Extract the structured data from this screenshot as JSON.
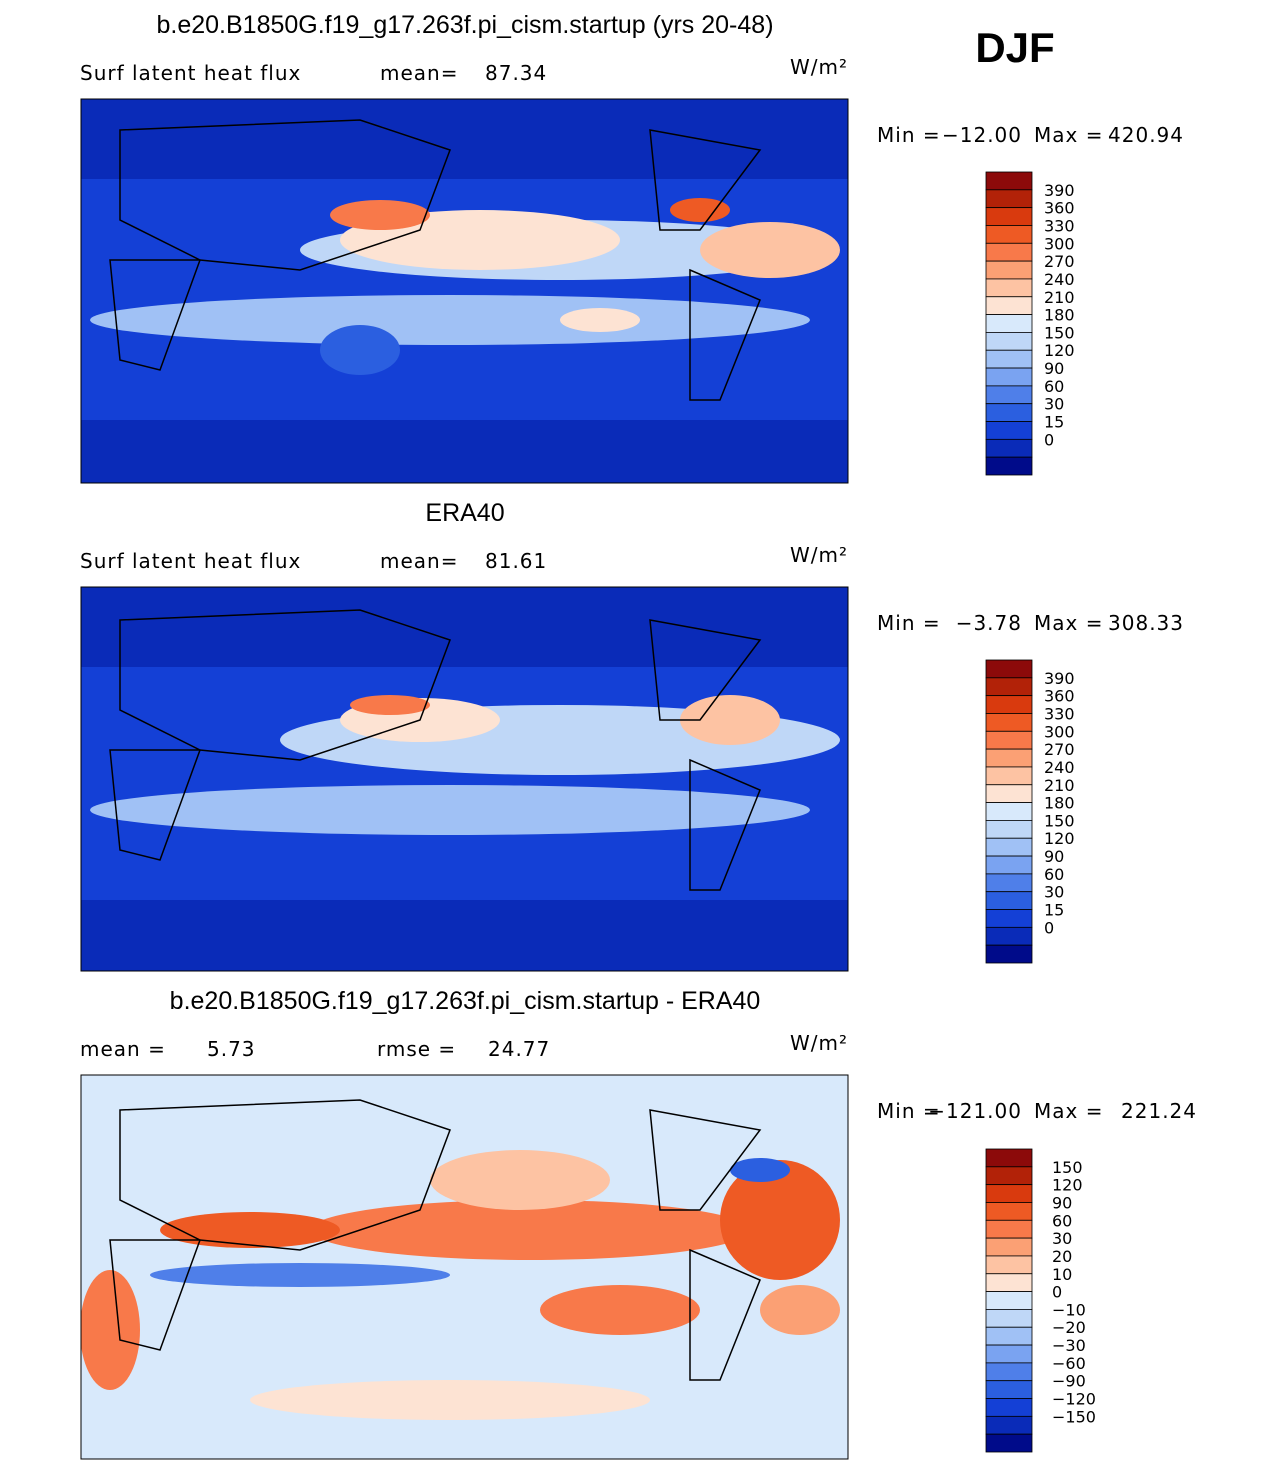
{
  "season": "DJF",
  "panels": [
    {
      "title": "b.e20.B1850G.f19_g17.263f.pi_cism.startup (yrs 20-48)",
      "variable": "Surf latent heat flux",
      "stats": [
        {
          "label": "mean=",
          "value": "87.34"
        }
      ],
      "units": "W/m²",
      "min_label": "Min =",
      "min": "−12.00",
      "max_label": "Max =",
      "max": "420.94",
      "colorbar": {
        "levels": [
          "390",
          "360",
          "330",
          "300",
          "270",
          "240",
          "210",
          "180",
          "150",
          "120",
          "90",
          "60",
          "30",
          "15",
          "0"
        ],
        "colors": [
          "#8c0a0a",
          "#b22208",
          "#d93a0e",
          "#ee5a24",
          "#f8794a",
          "#fba074",
          "#fdc3a3",
          "#fde3d3",
          "#d8e9fb",
          "#bfd7f7",
          "#a0c1f5",
          "#7aa3f1",
          "#4f7fe9",
          "#2b5fe0",
          "#1440d6",
          "#0a2bb8"
        ]
      }
    },
    {
      "title": "ERA40",
      "variable": "Surf latent heat flux",
      "stats": [
        {
          "label": "mean=",
          "value": "81.61"
        }
      ],
      "units": "W/m²",
      "min_label": "Min =",
      "min": "−3.78",
      "max_label": "Max =",
      "max": "308.33",
      "colorbar": {
        "levels": [
          "390",
          "360",
          "330",
          "300",
          "270",
          "240",
          "210",
          "180",
          "150",
          "120",
          "90",
          "60",
          "30",
          "15",
          "0"
        ],
        "colors": [
          "#8c0a0a",
          "#b22208",
          "#d93a0e",
          "#ee5a24",
          "#f8794a",
          "#fba074",
          "#fdc3a3",
          "#fde3d3",
          "#d8e9fb",
          "#bfd7f7",
          "#a0c1f5",
          "#7aa3f1",
          "#4f7fe9",
          "#2b5fe0",
          "#1440d6",
          "#0a2bb8"
        ]
      }
    },
    {
      "title": "b.e20.B1850G.f19_g17.263f.pi_cism.startup - ERA40",
      "variable": null,
      "stats": [
        {
          "label": "mean =",
          "value": "5.73"
        },
        {
          "label": "rmse =",
          "value": "24.77"
        }
      ],
      "units": "W/m²",
      "min_label": "Min =",
      "min": "−121.00",
      "max_label": "Max =",
      "max": "221.24",
      "colorbar": {
        "levels": [
          "150",
          "120",
          "90",
          "60",
          "30",
          "20",
          "10",
          "0",
          "−10",
          "−20",
          "−30",
          "−60",
          "−90",
          "−120",
          "−150"
        ],
        "colors": [
          "#8c0a0a",
          "#b22208",
          "#d93a0e",
          "#ee5a24",
          "#f8794a",
          "#fba074",
          "#fdc3a3",
          "#fde3d3",
          "#d8e9fb",
          "#bfd7f7",
          "#a0c1f5",
          "#7aa3f1",
          "#4f7fe9",
          "#2b5fe0",
          "#1440d6",
          "#0a2bb8"
        ]
      }
    }
  ]
}
